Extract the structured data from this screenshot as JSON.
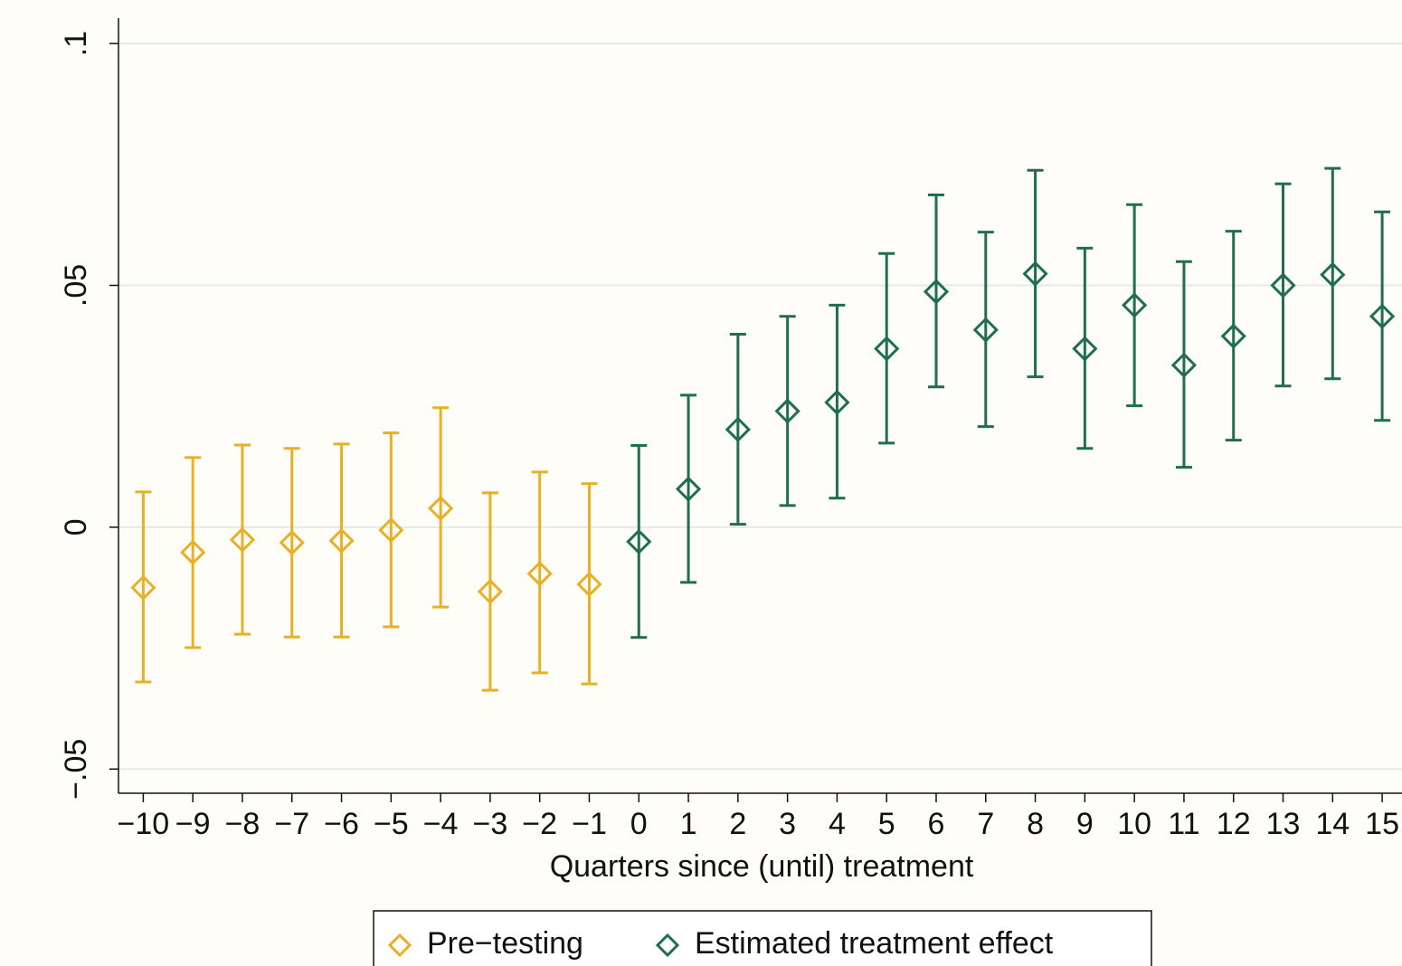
{
  "chart_data": {
    "type": "errorbar",
    "x_label": "Quarters since (until) treatment",
    "xlim": [
      -10.5,
      15.4
    ],
    "ylim": [
      -0.055,
      0.109
    ],
    "xticks": [
      {
        "value": -10,
        "label": "−10"
      },
      {
        "value": -9,
        "label": "−9"
      },
      {
        "value": -8,
        "label": "−8"
      },
      {
        "value": -7,
        "label": "−7"
      },
      {
        "value": -6,
        "label": "−6"
      },
      {
        "value": -5,
        "label": "−5"
      },
      {
        "value": -4,
        "label": "−4"
      },
      {
        "value": -3,
        "label": "−3"
      },
      {
        "value": -2,
        "label": "−2"
      },
      {
        "value": -1,
        "label": "−1"
      },
      0,
      1,
      2,
      3,
      4,
      5,
      6,
      7,
      8,
      9,
      10,
      11,
      12,
      13,
      14,
      15
    ],
    "yticks": [
      {
        "value": -0.05,
        "label": "−.05"
      },
      0,
      {
        "value": 0.05,
        "label": ".05"
      },
      {
        "value": 0.1,
        "label": ".1"
      }
    ],
    "grid": true,
    "series": [
      {
        "name": "Pre−testing",
        "color": "#e8b125",
        "x": [
          -10,
          -9,
          -8,
          -7,
          -6,
          -5,
          -4,
          -3,
          -2,
          -1
        ],
        "values": [
          -0.0125,
          -0.0052,
          -0.0026,
          -0.0032,
          -0.0028,
          -0.0006,
          0.0039,
          -0.0133,
          -0.0096,
          -0.0118
        ],
        "lower": [
          -0.032,
          -0.0249,
          -0.0221,
          -0.0227,
          -0.0227,
          -0.0206,
          -0.0165,
          -0.0337,
          -0.0301,
          -0.0324
        ],
        "upper": [
          0.0073,
          0.0144,
          0.017,
          0.0163,
          0.0172,
          0.0195,
          0.0247,
          0.0071,
          0.0114,
          0.009
        ]
      },
      {
        "name": "Estimated treatment effect",
        "color": "#1f6e50",
        "x": [
          0,
          1,
          2,
          3,
          4,
          5,
          6,
          7,
          8,
          9,
          10,
          11,
          12,
          13,
          14,
          15
        ],
        "values": [
          -0.003,
          0.0079,
          0.0202,
          0.024,
          0.0258,
          0.0369,
          0.0487,
          0.0408,
          0.0524,
          0.0369,
          0.0459,
          0.0335,
          0.0395,
          0.05,
          0.0522,
          0.0436
        ],
        "lower": [
          -0.0228,
          -0.0114,
          0.0006,
          0.0045,
          0.006,
          0.0174,
          0.029,
          0.0208,
          0.0311,
          0.0163,
          0.0251,
          0.0124,
          0.018,
          0.0292,
          0.0307,
          0.0221
        ],
        "upper": [
          0.0169,
          0.0273,
          0.0399,
          0.0436,
          0.0459,
          0.0566,
          0.0687,
          0.061,
          0.0738,
          0.0577,
          0.0667,
          0.0549,
          0.0612,
          0.071,
          0.0742,
          0.0652
        ]
      }
    ]
  }
}
